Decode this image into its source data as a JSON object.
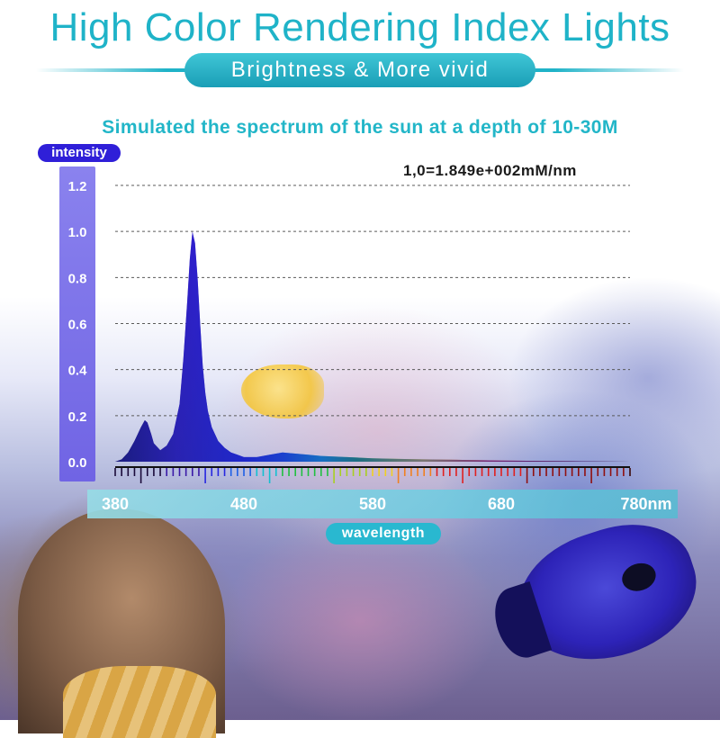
{
  "header": {
    "title": "High Color Rendering Index Lights",
    "subtitle": "Brightness & More vivid"
  },
  "chart_data": {
    "type": "area",
    "title": "Simulated the spectrum of the sun at a depth of 10-30M",
    "ylabel": "intensity",
    "xlabel": "wavelength",
    "unit_note": "1,0=1.849e+002mM/nm",
    "x_unit": "nm",
    "xlim": [
      380,
      780
    ],
    "ylim": [
      0.0,
      1.2
    ],
    "x_ticks": [
      "380",
      "480",
      "580",
      "680",
      "780nm"
    ],
    "x_tick_values": [
      380,
      480,
      580,
      680,
      780
    ],
    "y_ticks": [
      "0.0",
      "0.2",
      "0.4",
      "0.6",
      "0.8",
      "1.0",
      "1.2"
    ],
    "y_tick_values": [
      0.0,
      0.2,
      0.4,
      0.6,
      0.8,
      1.0,
      1.2
    ],
    "grid": "horizontal dashed",
    "series": [
      {
        "x": [
          380,
          385,
          390,
          395,
          400,
          403,
          405,
          408,
          410,
          415,
          420,
          425,
          430,
          433,
          436,
          438,
          440,
          442,
          444,
          446,
          448,
          450,
          452,
          455,
          460,
          465,
          470,
          475,
          480,
          490,
          500,
          510,
          520,
          530,
          540,
          560,
          580,
          600,
          620,
          650,
          680,
          720,
          760,
          780
        ],
        "y": [
          0.0,
          0.01,
          0.04,
          0.09,
          0.15,
          0.18,
          0.17,
          0.12,
          0.08,
          0.05,
          0.07,
          0.12,
          0.25,
          0.45,
          0.7,
          0.88,
          1.0,
          0.95,
          0.8,
          0.6,
          0.42,
          0.3,
          0.22,
          0.15,
          0.09,
          0.06,
          0.04,
          0.03,
          0.02,
          0.02,
          0.03,
          0.04,
          0.035,
          0.03,
          0.025,
          0.02,
          0.015,
          0.012,
          0.01,
          0.008,
          0.005,
          0.003,
          0.001,
          0.0
        ]
      }
    ]
  },
  "colors": {
    "title": "#1fb3c8",
    "subtitle_pill": "#1fa9c0",
    "chart_title": "#22b6c8",
    "ylabel_pill": "#2f1fd8",
    "y_strip": "#7f76eb",
    "peak_fill": "#2a22e0"
  }
}
